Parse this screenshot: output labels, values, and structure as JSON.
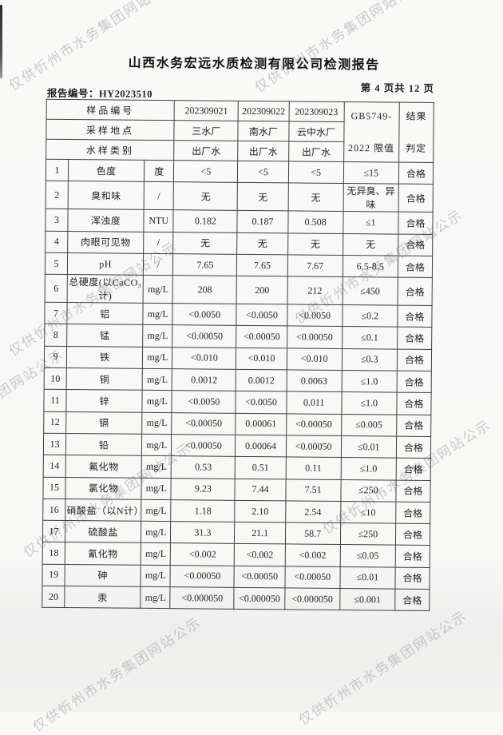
{
  "page": {
    "title": "山西水务宏远水质检测有限公司检测报告",
    "report_no_label": "报告编号：HY2023510",
    "page_indicator": "第 4 页共 12 页",
    "watermark_text": "仅供忻州市水务集团网站公示"
  },
  "colors": {
    "ink": "#222222",
    "border": "#3f3f3f",
    "watermark": "#a9a9a9",
    "paper": "#f8f8f7"
  },
  "table": {
    "header": {
      "sample_no_label": "样品编号",
      "sample_nos": [
        "202309021",
        "202309022",
        "202309023"
      ],
      "location_label": "采样地点",
      "locations": [
        "三水厂",
        "南水厂",
        "云中水厂"
      ],
      "type_label": "水样类别",
      "types": [
        "出厂水",
        "出厂水",
        "出厂水"
      ],
      "limit_header_line1": "GB5749-",
      "limit_header_line2": "2022 限值",
      "result_header_line1": "结果",
      "result_header_line2": "判定"
    },
    "rows": [
      {
        "no": "1",
        "name": "色度",
        "unit": "度",
        "v1": "<5",
        "v2": "<5",
        "v3": "<5",
        "limit": "≤15",
        "result": "合格"
      },
      {
        "no": "2",
        "name": "臭和味",
        "unit": "/",
        "v1": "无",
        "v2": "无",
        "v3": "无",
        "limit": "无异臭、异味",
        "result": "合格"
      },
      {
        "no": "3",
        "name": "浑浊度",
        "unit": "NTU",
        "v1": "0.182",
        "v2": "0.187",
        "v3": "0.508",
        "limit": "≤1",
        "result": "合格"
      },
      {
        "no": "4",
        "name": "肉眼可见物",
        "unit": "/",
        "v1": "无",
        "v2": "无",
        "v3": "无",
        "limit": "无",
        "result": "合格"
      },
      {
        "no": "5",
        "name": "pH",
        "unit": "/",
        "v1": "7.65",
        "v2": "7.65",
        "v3": "7.67",
        "limit": "6.5-8.5",
        "result": "合格"
      },
      {
        "no": "6",
        "name": "总硬度(以CaCO₃计)",
        "unit": "mg/L",
        "v1": "208",
        "v2": "200",
        "v3": "212",
        "limit": "≤450",
        "result": "合格"
      },
      {
        "no": "7",
        "name": "铝",
        "unit": "mg/L",
        "v1": "<0.0050",
        "v2": "<0.0050",
        "v3": "<0.0050",
        "limit": "≤0.2",
        "result": "合格"
      },
      {
        "no": "8",
        "name": "锰",
        "unit": "mg/L",
        "v1": "<0.00050",
        "v2": "<0.00050",
        "v3": "<0.00050",
        "limit": "≤0.1",
        "result": "合格"
      },
      {
        "no": "9",
        "name": "铁",
        "unit": "mg/L",
        "v1": "<0.010",
        "v2": "<0.010",
        "v3": "<0.010",
        "limit": "≤0.3",
        "result": "合格"
      },
      {
        "no": "10",
        "name": "铜",
        "unit": "mg/L",
        "v1": "0.0012",
        "v2": "0.0012",
        "v3": "0.0063",
        "limit": "≤1.0",
        "result": "合格"
      },
      {
        "no": "11",
        "name": "锌",
        "unit": "mg/L",
        "v1": "<0.0050",
        "v2": "<0.0050",
        "v3": "0.011",
        "limit": "≤1.0",
        "result": "合格"
      },
      {
        "no": "12",
        "name": "镉",
        "unit": "mg/L",
        "v1": "<0.00050",
        "v2": "0.00061",
        "v3": "<0.00050",
        "limit": "≤0.005",
        "result": "合格"
      },
      {
        "no": "13",
        "name": "铅",
        "unit": "mg/L",
        "v1": "<0.00050",
        "v2": "0.00064",
        "v3": "<0.00050",
        "limit": "≤0.01",
        "result": "合格"
      },
      {
        "no": "14",
        "name": "氟化物",
        "unit": "mg/L",
        "v1": "0.53",
        "v2": "0.51",
        "v3": "0.11",
        "limit": "≤1.0",
        "result": "合格"
      },
      {
        "no": "15",
        "name": "氯化物",
        "unit": "mg/L",
        "v1": "9.23",
        "v2": "7.44",
        "v3": "7.51",
        "limit": "≤250",
        "result": "合格"
      },
      {
        "no": "16",
        "name": "硝酸盐（以N计）",
        "unit": "mg/L",
        "v1": "1.18",
        "v2": "2.10",
        "v3": "2.54",
        "limit": "≤10",
        "result": "合格"
      },
      {
        "no": "17",
        "name": "硫酸盐",
        "unit": "mg/L",
        "v1": "31.3",
        "v2": "21.1",
        "v3": "58.7",
        "limit": "≤250",
        "result": "合格"
      },
      {
        "no": "18",
        "name": "氰化物",
        "unit": "mg/L",
        "v1": "<0.002",
        "v2": "<0.002",
        "v3": "<0.002",
        "limit": "≤0.05",
        "result": "合格"
      },
      {
        "no": "19",
        "name": "砷",
        "unit": "mg/L",
        "v1": "<0.00050",
        "v2": "<0.00050",
        "v3": "<0.00050",
        "limit": "≤0.01",
        "result": "合格"
      },
      {
        "no": "20",
        "name": "汞",
        "unit": "mg/L",
        "v1": "<0.000050",
        "v2": "<0.000050",
        "v3": "<0.000050",
        "limit": "≤0.001",
        "result": "合格"
      }
    ]
  }
}
